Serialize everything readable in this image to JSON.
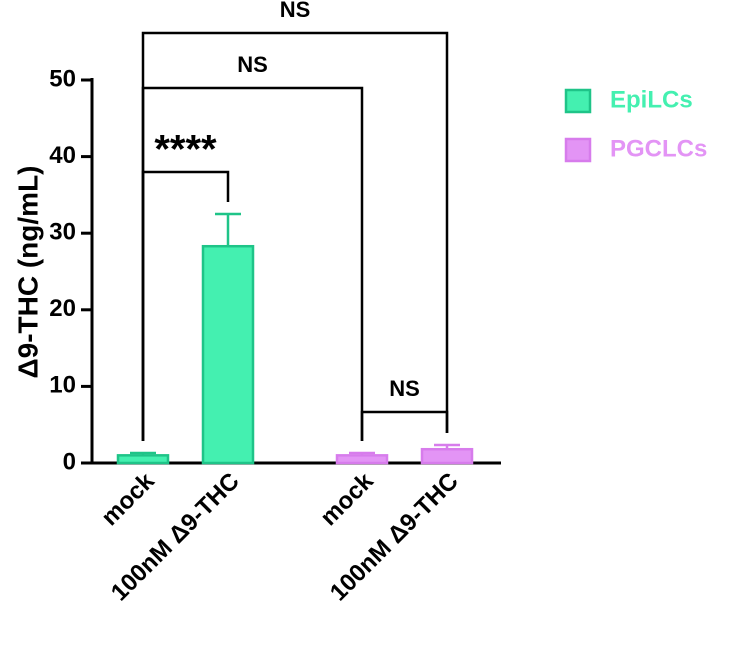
{
  "chart_data": {
    "type": "bar",
    "y_label": "Δ9-THC (ng/mL)",
    "categories": [
      "mock",
      "100nM Δ9-THC",
      "mock",
      "100nM Δ9-THC"
    ],
    "series": [
      {
        "name": "EpiLCs",
        "color": "#44f0b0",
        "edge_color": "#1fc488",
        "values": [
          1.0,
          28.3,
          null,
          null
        ],
        "errors": [
          0.3,
          4.2,
          null,
          null
        ]
      },
      {
        "name": "PGCLCs",
        "color": "#e394f5",
        "edge_color": "#d77cec",
        "values": [
          null,
          null,
          1.0,
          1.8
        ],
        "errors": [
          null,
          null,
          0.3,
          0.55
        ]
      }
    ],
    "ylim": [
      0,
      50
    ],
    "yticks": [
      0,
      10,
      20,
      30,
      40,
      50
    ],
    "annotations": [
      {
        "from": 0,
        "to": 1,
        "label": "****"
      },
      {
        "from": 0,
        "to": 2,
        "label": "NS"
      },
      {
        "from": 0,
        "to": 3,
        "label": "NS"
      },
      {
        "from": 2,
        "to": 3,
        "label": "NS"
      }
    ]
  }
}
